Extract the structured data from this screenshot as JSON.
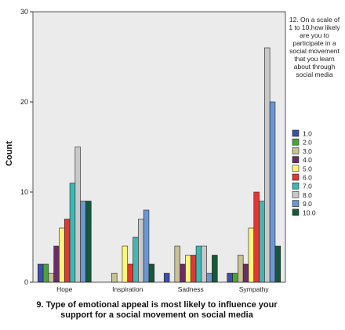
{
  "chart_data": {
    "type": "bar",
    "categories": [
      "Hope",
      "Inspiration",
      "Sadness",
      "Sympathy"
    ],
    "xlabel": "9. Type of emotional appeal is most likely to influence your support for a social movement on social media",
    "ylabel": "Count",
    "ylim": [
      0,
      30
    ],
    "yticks": [
      "0",
      "10",
      "20",
      "30"
    ],
    "legend_title": "12. On a scale of 1 to 10,how likely are you  to participate in a social movement that you learn about through social media",
    "legend_placement": "right",
    "grid": false,
    "background": "#ebebeb",
    "series": [
      {
        "name": "1.0",
        "color": "#3f4ea6",
        "values": [
          2,
          0,
          1,
          1
        ]
      },
      {
        "name": "2.0",
        "color": "#4aa33a",
        "values": [
          2,
          0,
          0,
          1
        ]
      },
      {
        "name": "3.0",
        "color": "#c9c193",
        "values": [
          1,
          1,
          4,
          3
        ]
      },
      {
        "name": "4.0",
        "color": "#6a2d68",
        "values": [
          4,
          0,
          2,
          2
        ]
      },
      {
        "name": "5.0",
        "color": "#fbf67a",
        "values": [
          6,
          4,
          3,
          6
        ]
      },
      {
        "name": "6.0",
        "color": "#e13834",
        "values": [
          7,
          2,
          3,
          10
        ]
      },
      {
        "name": "7.0",
        "color": "#3fb7b4",
        "values": [
          11,
          5,
          4,
          9
        ]
      },
      {
        "name": "8.0",
        "color": "#c9c9c9",
        "values": [
          15,
          7,
          4,
          26
        ]
      },
      {
        "name": "9.0",
        "color": "#6c97d2",
        "values": [
          9,
          8,
          1,
          20
        ]
      },
      {
        "name": "10.0",
        "color": "#17573b",
        "values": [
          9,
          2,
          3,
          4
        ]
      }
    ]
  }
}
